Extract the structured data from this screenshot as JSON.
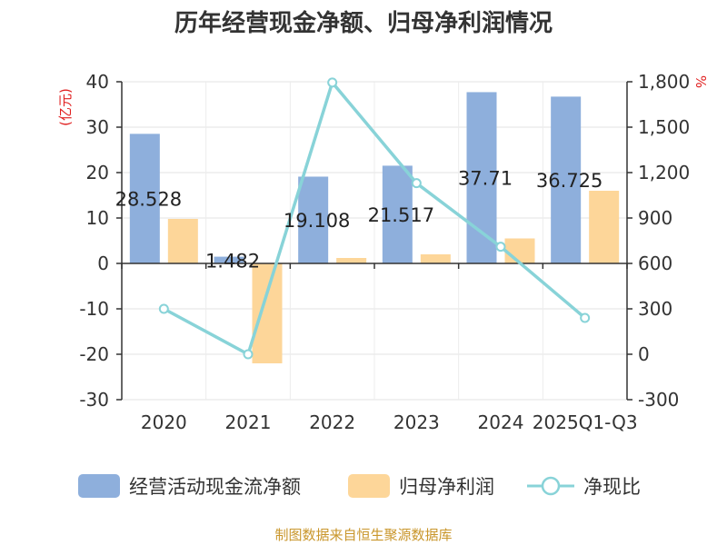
{
  "chart_data": {
    "type": "bar",
    "title": "历年经营现金净额、归母净利润情况",
    "categories": [
      "2020",
      "2021",
      "2022",
      "2023",
      "2024",
      "2025Q1-Q3"
    ],
    "left_axis": {
      "unit": "(亿元)",
      "ylim": [
        -30,
        40
      ],
      "ticks": [
        "40",
        "30",
        "20",
        "10",
        "0",
        "-10",
        "-20",
        "-30"
      ]
    },
    "right_axis": {
      "unit": "%",
      "ylim": [
        -300,
        1800
      ],
      "ticks": [
        "1,800",
        "1,500",
        "1,200",
        "900",
        "600",
        "300",
        "0",
        "-300"
      ]
    },
    "series": [
      {
        "name": "经营活动现金流净额",
        "kind": "bar",
        "axis": "left",
        "color": "#8eafdc",
        "values": [
          28.528,
          1.482,
          19.108,
          21.517,
          37.71,
          36.725
        ],
        "labels": [
          "28.528",
          "1.482",
          "19.108",
          "21.517",
          "37.71",
          "36.725"
        ]
      },
      {
        "name": "归母净利润",
        "kind": "bar",
        "axis": "left",
        "color": "#fdd699",
        "values": [
          9.8,
          -22.0,
          1.2,
          2.0,
          5.5,
          16.0
        ]
      },
      {
        "name": "净现比",
        "kind": "line",
        "axis": "right",
        "color": "#88d3d8",
        "values": [
          300,
          0,
          1795,
          1130,
          710,
          240
        ]
      }
    ],
    "grid": true,
    "legend": "bottom",
    "source": "制图数据来自恒生聚源数据库"
  }
}
